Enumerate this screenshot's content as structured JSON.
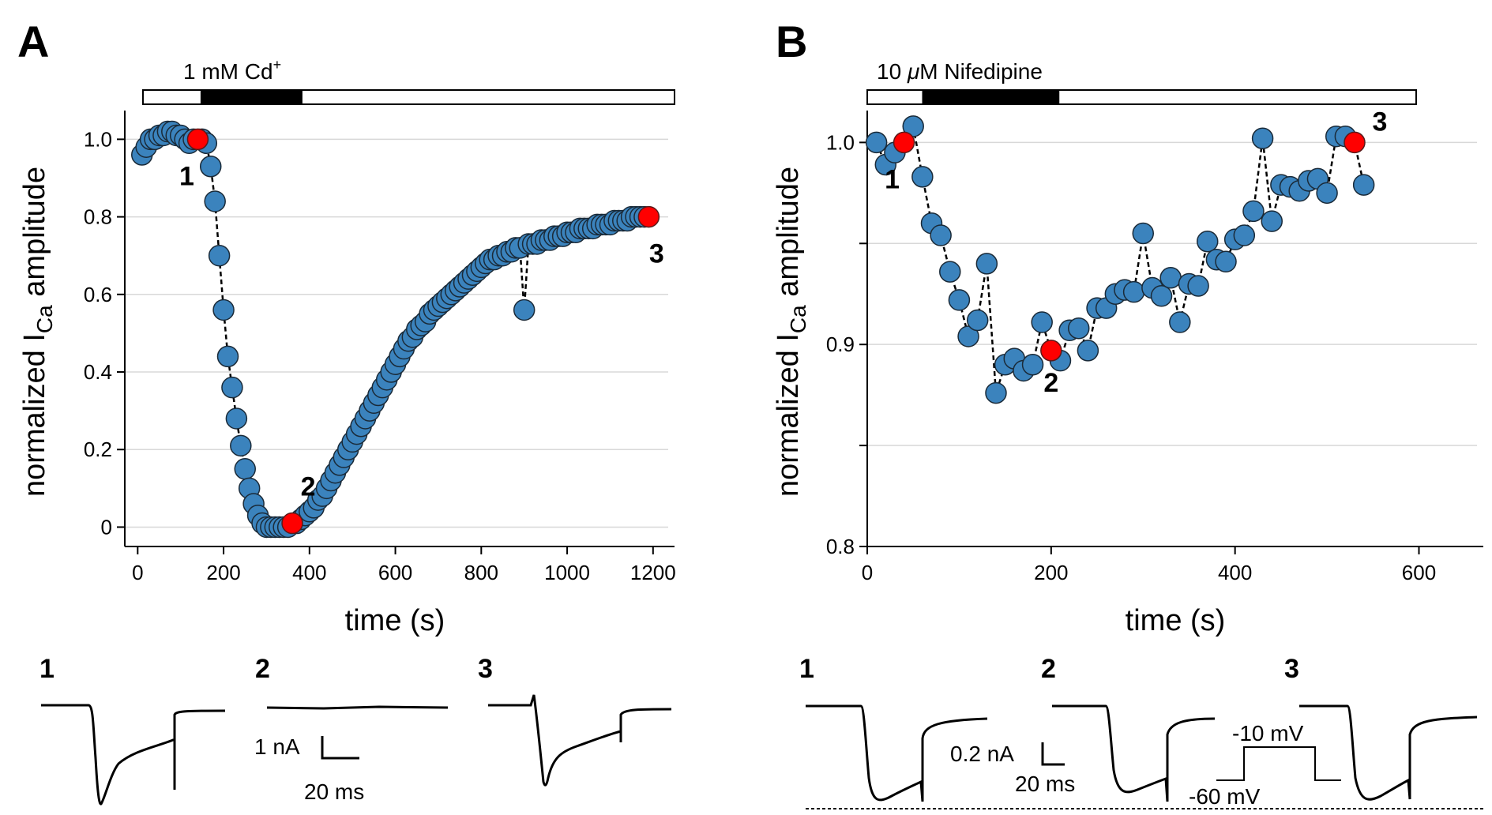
{
  "chart_data": [
    {
      "type": "scatter",
      "panel": "A",
      "bar_label": "1 mM Cd",
      "bar_label_sup": "+",
      "bar": {
        "x_start": 0,
        "x_end": 1200,
        "drug_start": 130,
        "drug_end": 360
      },
      "xlabel": "time (s)",
      "ylabel_parts": [
        "normalized I",
        "Ca",
        " amplitude"
      ],
      "xlim": [
        -30,
        1250
      ],
      "ylim": [
        -0.05,
        1.07
      ],
      "xticks": [
        0,
        200,
        400,
        600,
        800,
        1000,
        1200
      ],
      "xtick_labels": [
        "0",
        "200",
        "400",
        "600",
        "800",
        "1000",
        "1200"
      ],
      "yticks": [
        0,
        0.2,
        0.4,
        0.6,
        0.8,
        1.0
      ],
      "ytick_labels": [
        "0",
        "0.2",
        "0.4",
        "0.6",
        "0.8",
        "1.0"
      ],
      "grid": true,
      "x": [
        10,
        20,
        30,
        40,
        50,
        60,
        70,
        80,
        90,
        100,
        110,
        120,
        130,
        150,
        160,
        170,
        180,
        190,
        200,
        210,
        220,
        230,
        240,
        250,
        260,
        270,
        280,
        290,
        300,
        310,
        320,
        330,
        340,
        350,
        370,
        380,
        390,
        400,
        410,
        420,
        430,
        440,
        450,
        460,
        470,
        480,
        490,
        500,
        510,
        520,
        530,
        540,
        550,
        560,
        570,
        580,
        590,
        600,
        610,
        620,
        630,
        640,
        650,
        660,
        670,
        680,
        690,
        700,
        710,
        720,
        730,
        740,
        750,
        760,
        770,
        780,
        790,
        800,
        810,
        820,
        830,
        840,
        850,
        860,
        870,
        880,
        890,
        900,
        910,
        920,
        930,
        940,
        950,
        960,
        970,
        980,
        990,
        1000,
        1010,
        1020,
        1030,
        1040,
        1050,
        1060,
        1070,
        1080,
        1090,
        1100,
        1110,
        1120,
        1130,
        1140,
        1150,
        1160,
        1170,
        1180
      ],
      "y": [
        0.96,
        0.98,
        1.0,
        1.0,
        1.01,
        1.01,
        1.02,
        1.02,
        1.01,
        1.01,
        1.0,
        0.99,
        1.0,
        1.0,
        0.99,
        0.93,
        0.84,
        0.7,
        0.56,
        0.44,
        0.36,
        0.28,
        0.21,
        0.15,
        0.1,
        0.06,
        0.03,
        0.01,
        0.0,
        0.0,
        0.0,
        0.0,
        0.0,
        0.0,
        0.01,
        0.02,
        0.03,
        0.04,
        0.05,
        0.07,
        0.08,
        0.1,
        0.12,
        0.14,
        0.16,
        0.18,
        0.2,
        0.22,
        0.24,
        0.26,
        0.28,
        0.3,
        0.32,
        0.34,
        0.36,
        0.38,
        0.4,
        0.42,
        0.44,
        0.46,
        0.48,
        0.49,
        0.51,
        0.52,
        0.53,
        0.55,
        0.56,
        0.57,
        0.58,
        0.59,
        0.6,
        0.61,
        0.62,
        0.63,
        0.64,
        0.65,
        0.66,
        0.67,
        0.68,
        0.69,
        0.69,
        0.7,
        0.7,
        0.71,
        0.71,
        0.72,
        0.72,
        0.56,
        0.73,
        0.73,
        0.73,
        0.74,
        0.74,
        0.74,
        0.75,
        0.75,
        0.75,
        0.76,
        0.76,
        0.76,
        0.77,
        0.77,
        0.77,
        0.77,
        0.78,
        0.78,
        0.78,
        0.78,
        0.79,
        0.79,
        0.79,
        0.79,
        0.8,
        0.8,
        0.8,
        0.8
      ],
      "highlight": [
        {
          "x": 140,
          "y": 1.0,
          "label": "1"
        },
        {
          "x": 360,
          "y": 0.01,
          "label": "2"
        },
        {
          "x": 1190,
          "y": 0.8,
          "label": "3"
        }
      ],
      "point_color": "#3b83bd",
      "highlight_color": "#ff0000"
    },
    {
      "type": "scatter",
      "panel": "B",
      "bar_label_prefix": "10 ",
      "bar_label_mu": "μ",
      "bar_label_suffix": "M Nifedipine",
      "bar": {
        "x_start": 0,
        "x_end": 600,
        "drug_start": 60,
        "drug_end": 210
      },
      "xlabel": "time (s)",
      "ylabel_parts": [
        "normalized I",
        "Ca",
        " amplitude"
      ],
      "xlim": [
        0,
        670
      ],
      "ylim": [
        0.8,
        1.015
      ],
      "xticks": [
        0,
        200,
        400,
        600
      ],
      "xtick_labels": [
        "0",
        "200",
        "400",
        "600"
      ],
      "yticks": [
        0.8,
        0.85,
        0.9,
        0.95,
        1.0
      ],
      "ytick_labels": [
        "0.8",
        "",
        "0.9",
        "",
        "1.0"
      ],
      "grid": true,
      "x": [
        10,
        20,
        30,
        50,
        60,
        70,
        80,
        90,
        100,
        110,
        120,
        130,
        140,
        150,
        160,
        170,
        180,
        190,
        210,
        220,
        230,
        240,
        250,
        260,
        270,
        280,
        290,
        300,
        310,
        320,
        330,
        340,
        350,
        360,
        370,
        380,
        390,
        400,
        410,
        420,
        430,
        440,
        450,
        460,
        470,
        480,
        490,
        500,
        510,
        520,
        540
      ],
      "y": [
        1.0,
        0.989,
        0.995,
        1.008,
        0.983,
        0.96,
        0.954,
        0.936,
        0.922,
        0.904,
        0.912,
        0.94,
        0.876,
        0.89,
        0.893,
        0.887,
        0.89,
        0.911,
        0.892,
        0.907,
        0.908,
        0.897,
        0.918,
        0.918,
        0.925,
        0.927,
        0.926,
        0.955,
        0.928,
        0.924,
        0.933,
        0.911,
        0.93,
        0.929,
        0.951,
        0.942,
        0.941,
        0.952,
        0.954,
        0.966,
        1.002,
        0.961,
        0.979,
        0.978,
        0.976,
        0.981,
        0.982,
        0.975,
        1.003,
        1.003,
        0.979
      ],
      "highlight": [
        {
          "x": 40,
          "y": 1.0,
          "label": "1"
        },
        {
          "x": 200,
          "y": 0.897,
          "label": "2"
        },
        {
          "x": 530,
          "y": 1.0,
          "label": "3"
        }
      ],
      "point_color": "#3b83bd",
      "highlight_color": "#ff0000"
    }
  ],
  "traces": {
    "A": {
      "labels": [
        "1",
        "2",
        "3"
      ],
      "scale_current": "1 nA",
      "scale_time": "20 ms"
    },
    "B": {
      "labels": [
        "1",
        "2",
        "3"
      ],
      "scale_current": "0.2 nA",
      "scale_time": "20 ms",
      "protocol_high": "-10 mV",
      "protocol_low": "-60 mV"
    }
  }
}
